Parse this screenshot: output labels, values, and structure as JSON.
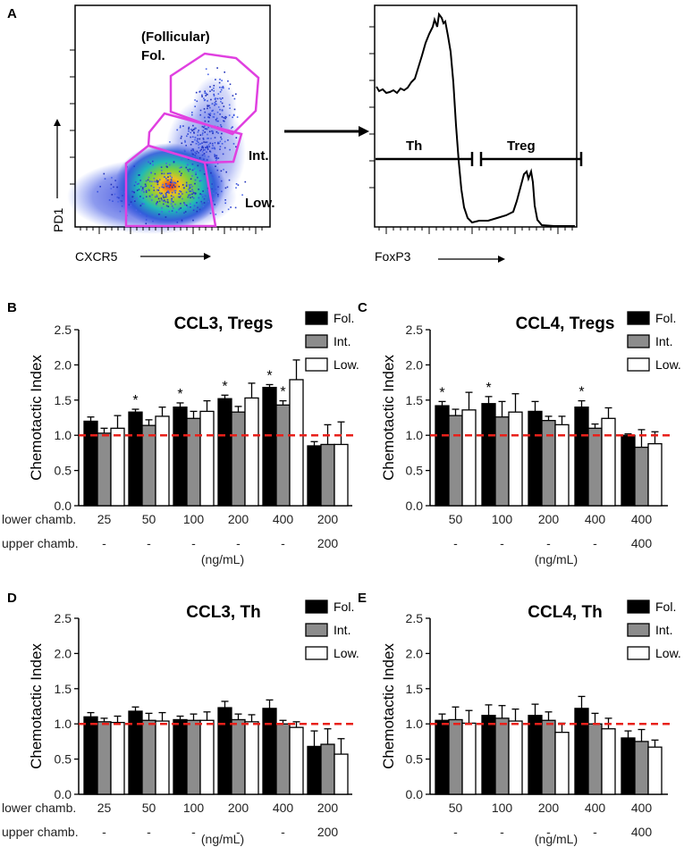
{
  "panel_a": {
    "letter": "A",
    "dotplot": {
      "x_axis_label": "CXCR5",
      "y_axis_label": "PD1",
      "gates": [
        {
          "name": "Fol.",
          "caption": "(Follicular)"
        },
        {
          "name": "Int."
        },
        {
          "name": "Low."
        }
      ]
    },
    "histogram": {
      "x_axis_label": "FoxP3",
      "gates": [
        {
          "name": "Th"
        },
        {
          "name": "Treg"
        }
      ]
    }
  },
  "chart_data": [
    {
      "panel": "B",
      "type": "bar",
      "title": "CCL3, Tregs",
      "ylabel": "Chemotactic Index",
      "ylim": [
        0.0,
        2.5
      ],
      "yticks": [
        "0.0",
        "0.5",
        "1.0",
        "1.5",
        "2.0",
        "2.5"
      ],
      "reference_line": 1.0,
      "categories": [
        "25",
        "50",
        "100",
        "200",
        "400",
        "200"
      ],
      "row_labels": [
        "lower chamb.",
        "upper chamb."
      ],
      "upper_chamber": [
        "-",
        "-",
        "-",
        "-",
        "-",
        "200"
      ],
      "unit": "(ng/mL)",
      "legend": [
        "Fol.",
        "Int.",
        "Low."
      ],
      "series": [
        {
          "name": "Fol.",
          "values": [
            1.2,
            1.33,
            1.4,
            1.52,
            1.68,
            0.85
          ],
          "errors": [
            0.06,
            0.04,
            0.06,
            0.05,
            0.04,
            0.06
          ]
        },
        {
          "name": "Int.",
          "values": [
            1.03,
            1.14,
            1.24,
            1.33,
            1.43,
            0.87
          ],
          "errors": [
            0.07,
            0.08,
            0.1,
            0.08,
            0.06,
            0.28
          ]
        },
        {
          "name": "Low.",
          "values": [
            1.1,
            1.27,
            1.34,
            1.53,
            1.79,
            0.87
          ],
          "errors": [
            0.18,
            0.13,
            0.15,
            0.21,
            0.28,
            0.32
          ]
        }
      ],
      "significance": [
        [
          "",
          "",
          ""
        ],
        [
          "*",
          "",
          ""
        ],
        [
          "*",
          "",
          ""
        ],
        [
          "*",
          "",
          ""
        ],
        [
          "*",
          "*",
          ""
        ],
        [
          "",
          "",
          ""
        ]
      ]
    },
    {
      "panel": "C",
      "type": "bar",
      "title": "CCL4, Tregs",
      "ylabel": "Chemotactic Index",
      "ylim": [
        0.0,
        2.5
      ],
      "yticks": [
        "0.0",
        "0.5",
        "1.0",
        "1.5",
        "2.0",
        "2.5"
      ],
      "reference_line": 1.0,
      "categories": [
        "50",
        "100",
        "200",
        "400",
        "400"
      ],
      "row_labels": [],
      "upper_chamber": [
        "-",
        "-",
        "-",
        "-",
        "400"
      ],
      "unit": "(ng/mL)",
      "legend": [
        "Fol.",
        "Int.",
        "Low."
      ],
      "series": [
        {
          "name": "Fol.",
          "values": [
            1.42,
            1.45,
            1.34,
            1.4,
            1.0
          ],
          "errors": [
            0.06,
            0.1,
            0.14,
            0.09,
            0.02
          ]
        },
        {
          "name": "Int.",
          "values": [
            1.28,
            1.26,
            1.21,
            1.1,
            0.83
          ],
          "errors": [
            0.09,
            0.22,
            0.06,
            0.06,
            0.25
          ]
        },
        {
          "name": "Low.",
          "values": [
            1.36,
            1.33,
            1.15,
            1.24,
            0.88
          ],
          "errors": [
            0.25,
            0.26,
            0.12,
            0.15,
            0.17
          ]
        }
      ],
      "significance": [
        [
          "*",
          "",
          ""
        ],
        [
          "*",
          "",
          ""
        ],
        [
          "",
          "",
          ""
        ],
        [
          "*",
          "",
          ""
        ],
        [
          "",
          "",
          ""
        ]
      ]
    },
    {
      "panel": "D",
      "type": "bar",
      "title": "CCL3, Th",
      "ylabel": "Chemotactic Index",
      "ylim": [
        0.0,
        2.5
      ],
      "yticks": [
        "0.0",
        "0.5",
        "1.0",
        "1.5",
        "2.0",
        "2.5"
      ],
      "reference_line": 1.0,
      "categories": [
        "25",
        "50",
        "100",
        "200",
        "400",
        "200"
      ],
      "row_labels": [
        "lower chamb.",
        "upper chamb."
      ],
      "upper_chamber": [
        "-",
        "-",
        "-",
        "-",
        "-",
        "200"
      ],
      "unit": "(ng/mL)",
      "legend": [
        "Fol.",
        "Int.",
        "Low."
      ],
      "series": [
        {
          "name": "Fol.",
          "values": [
            1.1,
            1.18,
            1.06,
            1.23,
            1.22,
            0.68
          ],
          "errors": [
            0.06,
            0.06,
            0.05,
            0.09,
            0.12,
            0.22
          ]
        },
        {
          "name": "Int.",
          "values": [
            1.03,
            1.05,
            1.05,
            1.06,
            1.0,
            0.71
          ],
          "errors": [
            0.05,
            0.1,
            0.09,
            0.08,
            0.05,
            0.22
          ]
        },
        {
          "name": "Low.",
          "values": [
            1.02,
            1.04,
            1.05,
            1.03,
            0.95,
            0.57
          ],
          "errors": [
            0.09,
            0.12,
            0.12,
            0.1,
            0.08,
            0.22
          ]
        }
      ],
      "significance": [
        [
          "",
          "",
          ""
        ],
        [
          "",
          "",
          ""
        ],
        [
          "",
          "",
          ""
        ],
        [
          "",
          "",
          ""
        ],
        [
          "",
          "",
          ""
        ],
        [
          "",
          "",
          ""
        ]
      ]
    },
    {
      "panel": "E",
      "type": "bar",
      "title": "CCL4, Th",
      "ylabel": "Chemotactic Index",
      "ylim": [
        0.0,
        2.5
      ],
      "yticks": [
        "0.0",
        "0.5",
        "1.0",
        "1.5",
        "2.0",
        "2.5"
      ],
      "reference_line": 1.0,
      "categories": [
        "50",
        "100",
        "200",
        "400",
        "400"
      ],
      "row_labels": [],
      "upper_chamber": [
        "-",
        "-",
        "-",
        "-",
        "400"
      ],
      "unit": "(ng/mL)",
      "legend": [
        "Fol.",
        "Int.",
        "Low."
      ],
      "series": [
        {
          "name": "Fol.",
          "values": [
            1.05,
            1.12,
            1.12,
            1.22,
            0.8
          ],
          "errors": [
            0.09,
            0.15,
            0.16,
            0.17,
            0.1
          ]
        },
        {
          "name": "Int.",
          "values": [
            1.06,
            1.08,
            1.05,
            1.0,
            0.75
          ],
          "errors": [
            0.18,
            0.18,
            0.12,
            0.15,
            0.17
          ]
        },
        {
          "name": "Low.",
          "values": [
            1.01,
            1.04,
            0.88,
            0.93,
            0.67
          ],
          "errors": [
            0.18,
            0.17,
            0.13,
            0.15,
            0.1
          ]
        }
      ],
      "significance": [
        [
          "",
          "",
          ""
        ],
        [
          "",
          "",
          ""
        ],
        [
          "",
          "",
          ""
        ],
        [
          "",
          "",
          ""
        ],
        [
          "",
          "",
          ""
        ]
      ]
    }
  ],
  "colors": {
    "fol": "#000000",
    "int": "#8c8c8c",
    "low": "#ffffff",
    "reference": "#e8201a",
    "gate": "#e040e0"
  }
}
